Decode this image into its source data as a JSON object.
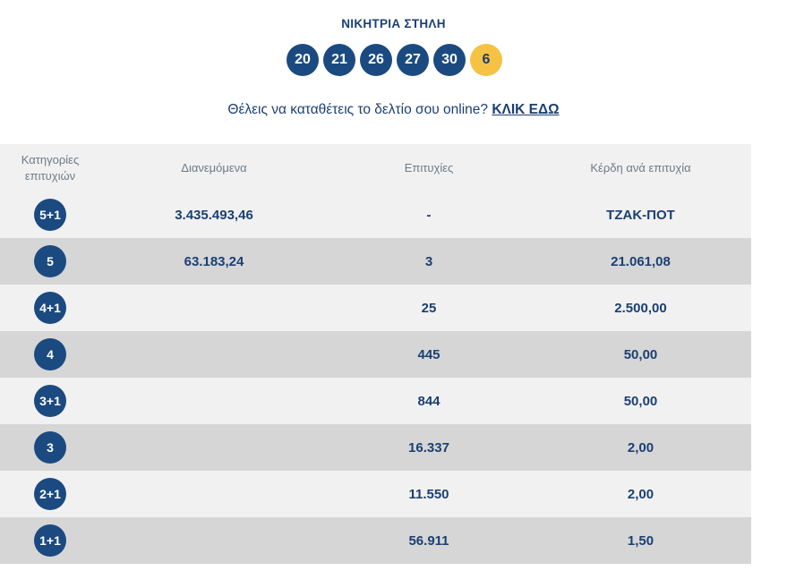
{
  "header": {
    "title": "ΝΙΚΗΤΡΙΑ ΣΤΗΛΗ"
  },
  "winning_numbers": [
    "20",
    "21",
    "26",
    "27",
    "30"
  ],
  "joker_number": "6",
  "cta": {
    "text": "Θέλεις να καταθέτεις το δελτίο σου online?",
    "link": "ΚΛΙΚ ΕΔΩ"
  },
  "table": {
    "headers": {
      "category": "Κατηγορίες επιτυχιών",
      "distributed": "Διανεμόμενα",
      "winners": "Επιτυχίες",
      "prize": "Κέρδη ανά επιτυχία"
    },
    "rows": [
      {
        "category": "5+1",
        "distributed": "3.435.493,46",
        "winners": "-",
        "prize": "ΤΖΑΚ-ΠΟΤ"
      },
      {
        "category": "5",
        "distributed": "63.183,24",
        "winners": "3",
        "prize": "21.061,08"
      },
      {
        "category": "4+1",
        "distributed": "",
        "winners": "25",
        "prize": "2.500,00"
      },
      {
        "category": "4",
        "distributed": "",
        "winners": "445",
        "prize": "50,00"
      },
      {
        "category": "3+1",
        "distributed": "",
        "winners": "844",
        "prize": "50,00"
      },
      {
        "category": "3",
        "distributed": "",
        "winners": "16.337",
        "prize": "2,00"
      },
      {
        "category": "2+1",
        "distributed": "",
        "winners": "11.550",
        "prize": "2,00"
      },
      {
        "category": "1+1",
        "distributed": "",
        "winners": "56.911",
        "prize": "1,50"
      }
    ]
  },
  "colors": {
    "primary": "#1b4a80",
    "joker": "#f6c244",
    "row_light": "#f1f1f1",
    "row_dark": "#d6d6d6"
  }
}
